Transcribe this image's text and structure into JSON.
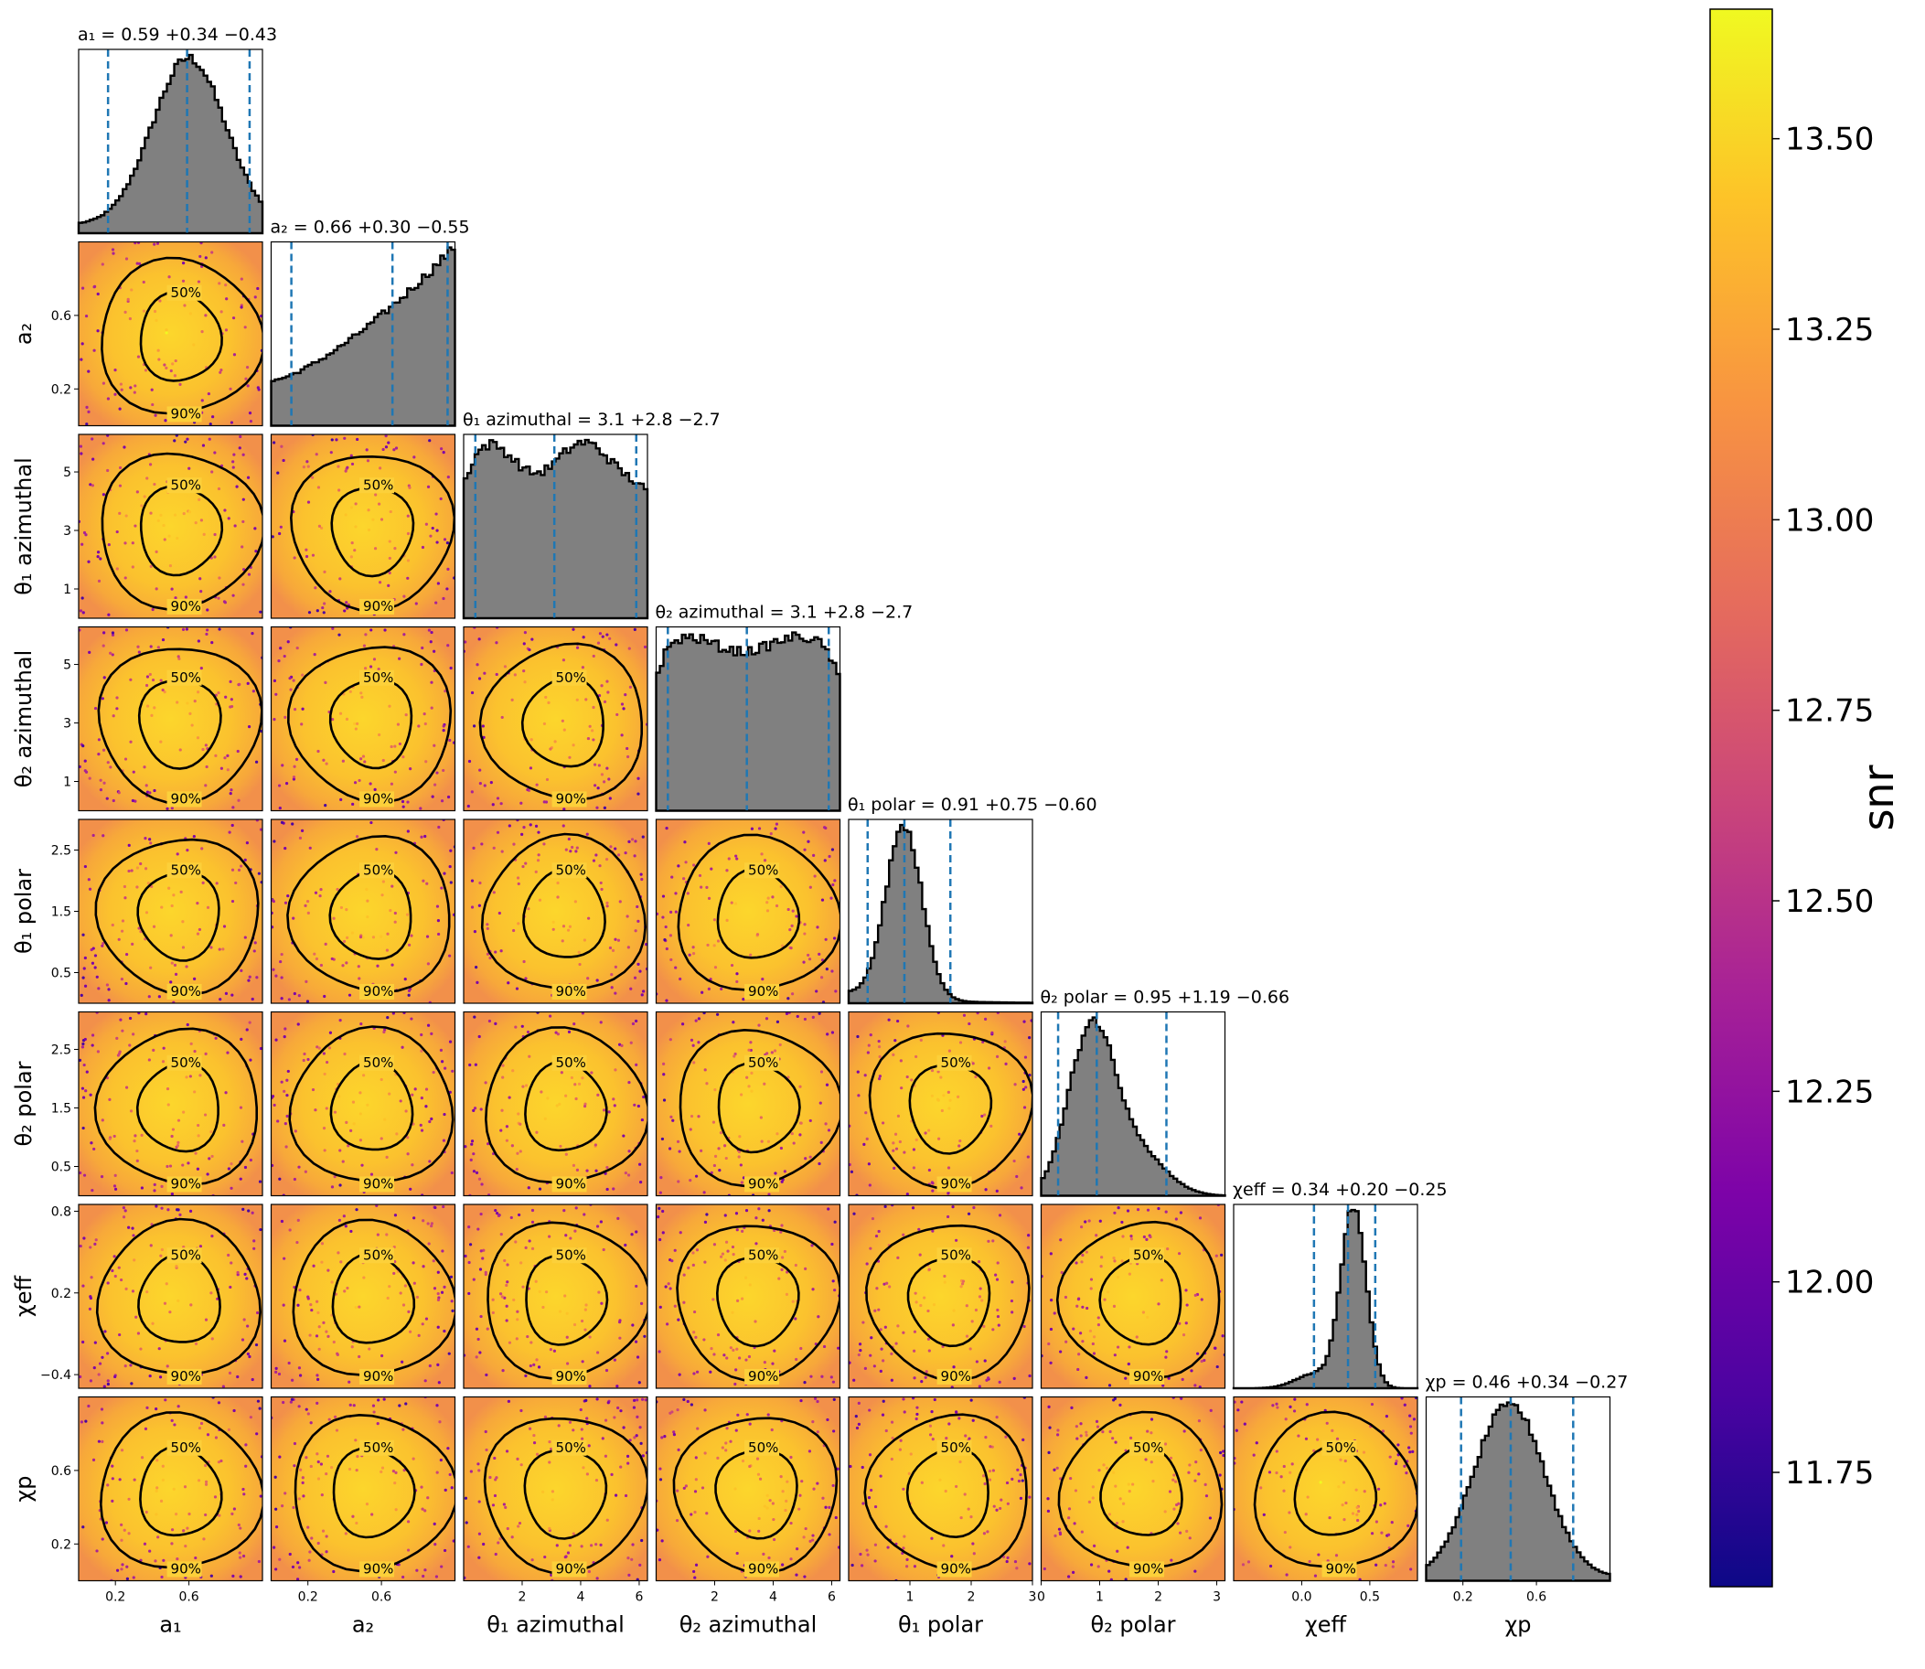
{
  "colors": {
    "hist_fill": "#808080",
    "quantile_line": "#1f77b4",
    "contour": "#000000",
    "colormap": "plasma"
  },
  "chart_data": {
    "type": "corner",
    "parameters": [
      {
        "label": "a₁",
        "range": [
          0.0,
          1.0
        ],
        "ticks": [
          "0.2",
          "0.6"
        ],
        "tick_values": [
          0.2,
          0.6
        ],
        "title": "a₁ = 0.59 +0.34 −0.43",
        "median": 0.59,
        "plus": 0.34,
        "minus": 0.43
      },
      {
        "label": "a₂",
        "range": [
          0.0,
          1.0
        ],
        "ticks": [
          "0.2",
          "0.6"
        ],
        "tick_values": [
          0.2,
          0.6
        ],
        "title": "a₂ = 0.66 +0.30 −0.55",
        "median": 0.66,
        "plus": 0.3,
        "minus": 0.55
      },
      {
        "label": "θ₁ azimuthal",
        "range": [
          0.0,
          6.283
        ],
        "ticks": [
          "1",
          "3",
          "5"
        ],
        "tick_values": [
          1,
          3,
          5
        ],
        "x_ticks": [
          "2",
          "4",
          "6"
        ],
        "x_tick_values": [
          2,
          4,
          6
        ],
        "title": "θ₁ azimuthal = 3.1 +2.8 −2.7",
        "median": 3.1,
        "plus": 2.8,
        "minus": 2.7
      },
      {
        "label": "θ₂ azimuthal",
        "range": [
          0.0,
          6.283
        ],
        "ticks": [
          "1",
          "3",
          "5"
        ],
        "tick_values": [
          1,
          3,
          5
        ],
        "x_ticks": [
          "2",
          "4",
          "6"
        ],
        "x_tick_values": [
          2,
          4,
          6
        ],
        "title": "θ₂ azimuthal = 3.1 +2.8 −2.7",
        "median": 3.1,
        "plus": 2.8,
        "minus": 2.7
      },
      {
        "label": "θ₁ polar",
        "range": [
          0.0,
          3.0
        ],
        "ticks": [
          "0.5",
          "1.5",
          "2.5"
        ],
        "tick_values": [
          0.5,
          1.5,
          2.5
        ],
        "x_ticks": [
          "1",
          "2",
          "3"
        ],
        "x_tick_values": [
          1,
          2,
          3
        ],
        "title": "θ₁ polar = 0.91 +0.75 −0.60",
        "median": 0.91,
        "plus": 0.75,
        "minus": 0.6
      },
      {
        "label": "θ₂ polar",
        "range": [
          0.0,
          3.14
        ],
        "ticks": [
          "0.5",
          "1.5",
          "2.5"
        ],
        "tick_values": [
          0.5,
          1.5,
          2.5
        ],
        "x_ticks": [
          "0",
          "1",
          "2",
          "3"
        ],
        "x_tick_values": [
          0,
          1,
          2,
          3
        ],
        "title": "θ₂ polar = 0.95 +1.19 −0.66",
        "median": 0.95,
        "plus": 1.19,
        "minus": 0.66
      },
      {
        "label": "χeff",
        "range": [
          -0.5,
          0.85
        ],
        "ticks": [
          "−0.4",
          "0.2",
          "0.8"
        ],
        "tick_values": [
          -0.4,
          0.2,
          0.8
        ],
        "x_ticks": [
          "0.0",
          "0.5"
        ],
        "x_tick_values": [
          0.0,
          0.5
        ],
        "title": "χeff = 0.34 +0.20 −0.25",
        "median": 0.34,
        "plus": 0.2,
        "minus": 0.25
      },
      {
        "label": "χp",
        "range": [
          0.0,
          1.0
        ],
        "ticks": [
          "0.2",
          "0.6"
        ],
        "tick_values": [
          0.2,
          0.6
        ],
        "x_ticks": [
          "0.2",
          "0.6"
        ],
        "x_tick_values": [
          0.2,
          0.6
        ],
        "title": "χp = 0.46 +0.34 −0.27",
        "median": 0.46,
        "plus": 0.34,
        "minus": 0.27
      }
    ],
    "contour_levels": [
      "50%",
      "90%"
    ],
    "colorbar": {
      "label": "snr",
      "range": [
        11.6,
        13.67
      ],
      "ticks": [
        "11.75",
        "12.00",
        "12.25",
        "12.50",
        "12.75",
        "13.00",
        "13.25",
        "13.50"
      ],
      "tick_values": [
        11.75,
        12.0,
        12.25,
        12.5,
        12.75,
        13.0,
        13.25,
        13.5
      ]
    }
  }
}
